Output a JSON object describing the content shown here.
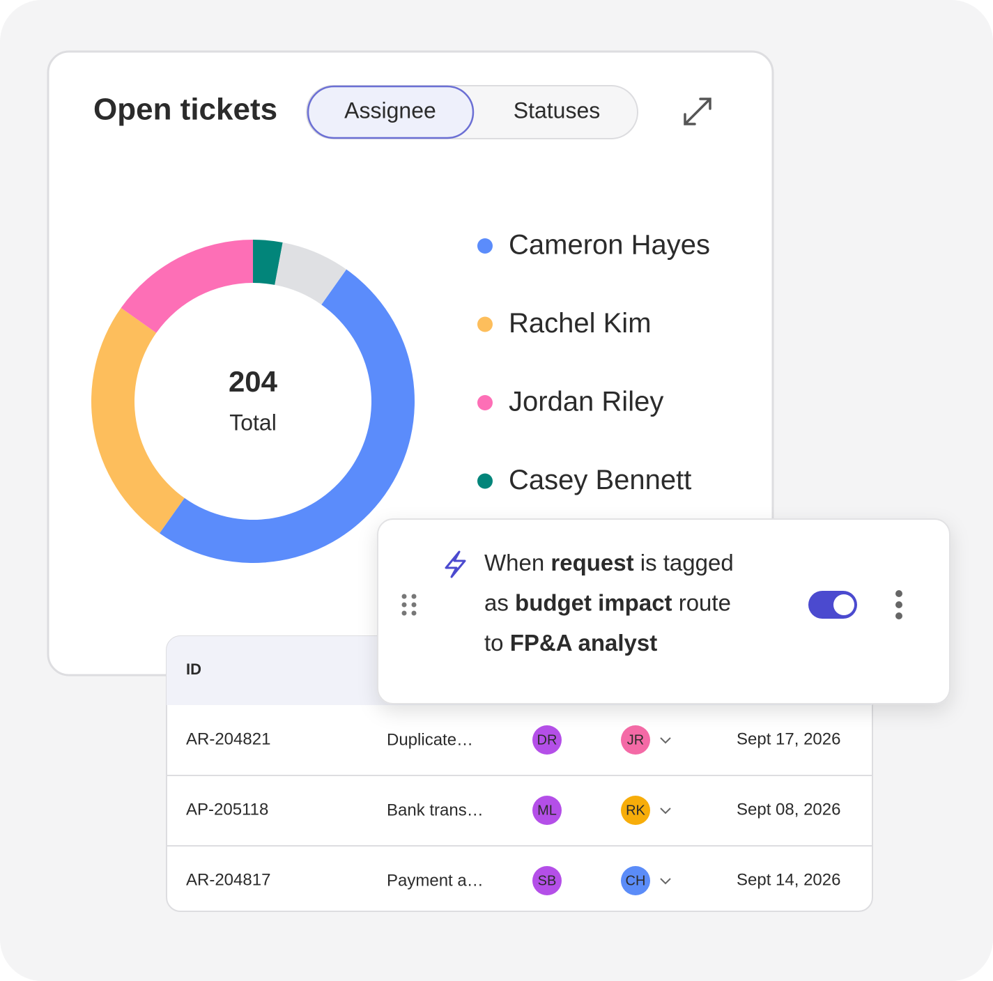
{
  "header": {
    "title": "Open tickets",
    "tabs": [
      {
        "label": "Assignee",
        "active": true
      },
      {
        "label": "Statuses",
        "active": false
      }
    ]
  },
  "chart_data": {
    "type": "donut",
    "categories": [
      "Cameron Hayes",
      "Rachel Kim",
      "Jordan Riley",
      "Casey Bennett",
      null
    ],
    "values": [
      102,
      51,
      31,
      6,
      14
    ],
    "colors": [
      "#5b8cfb",
      "#fdbe5c",
      "#fd6fb6",
      "#02857a",
      "#dfe0e3"
    ],
    "total": 204,
    "total_label": "Total"
  },
  "rule": {
    "lines": [
      [
        {
          "text": "When ",
          "bold": false
        },
        {
          "text": "request",
          "bold": true
        },
        {
          "text": " is tagged",
          "bold": false
        }
      ],
      [
        {
          "text": "as ",
          "bold": false
        },
        {
          "text": "budget impact",
          "bold": true
        },
        {
          "text": " route",
          "bold": false
        }
      ],
      [
        {
          "text": "to ",
          "bold": false
        },
        {
          "text": "FP&A analyst",
          "bold": true
        }
      ]
    ],
    "enabled": true
  },
  "table": {
    "header": "ID",
    "rows": [
      {
        "id": "AR-204821",
        "subject": "Duplicate…",
        "requester": {
          "initials": "DR",
          "color": "#b44fe8"
        },
        "assignee": {
          "initials": "JR",
          "color": "#f46aa6"
        },
        "date": "Sept 17, 2026"
      },
      {
        "id": "AP-205118",
        "subject": "Bank trans…",
        "requester": {
          "initials": "ML",
          "color": "#b44fe8"
        },
        "assignee": {
          "initials": "RK",
          "color": "#f7ad0a"
        },
        "date": "Sept 08, 2026"
      },
      {
        "id": "AR-204817",
        "subject": "Payment a…",
        "requester": {
          "initials": "SB",
          "color": "#b44fe8"
        },
        "assignee": {
          "initials": "CH",
          "color": "#5b8cf8"
        },
        "date": "Sept 14, 2026"
      }
    ]
  }
}
